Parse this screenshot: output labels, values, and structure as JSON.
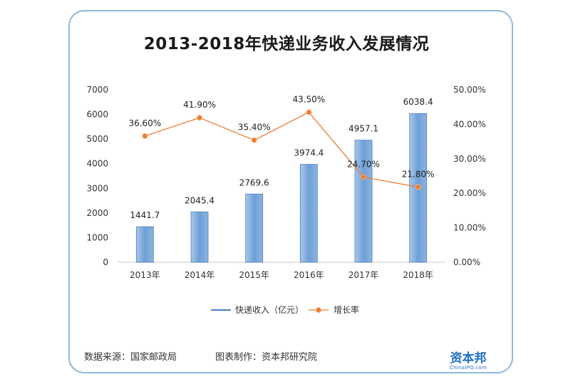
{
  "footer": {
    "source": "数据来源：国家邮政局",
    "maker": "图表制作：资本邦研究院"
  },
  "brand": {
    "name": "资本邦",
    "sub": "ChinaIPO.com"
  },
  "colors": {
    "bar": "#6f9fd6",
    "bar_edge": "#4a7fbf",
    "line": "#ed7d31",
    "border": "#8fb8dc"
  },
  "chart_data": {
    "type": "bar",
    "title": "2013-2018年快递业务收入发展情况",
    "categories": [
      "2013年",
      "2014年",
      "2015年",
      "2016年",
      "2017年",
      "2018年"
    ],
    "series": [
      {
        "name": "快递收入（亿元）",
        "type": "bar",
        "axis": "left",
        "values": [
          1441.7,
          2045.4,
          2769.6,
          3974.4,
          4957.1,
          6038.4
        ],
        "labels": [
          "1441.7",
          "2045.4",
          "2769.6",
          "3974.4",
          "4957.1",
          "6038.4"
        ]
      },
      {
        "name": "增长率",
        "type": "line",
        "axis": "right",
        "values": [
          36.6,
          41.9,
          35.4,
          43.5,
          24.7,
          21.8
        ],
        "labels": [
          "36.60%",
          "41.90%",
          "35.40%",
          "43.50%",
          "24.70%",
          "21.80%"
        ]
      }
    ],
    "y_left": {
      "ylim": [
        0,
        7000
      ],
      "ticks": [
        "0",
        "1000",
        "2000",
        "3000",
        "4000",
        "5000",
        "6000",
        "7000"
      ]
    },
    "y_right": {
      "ylim": [
        0,
        50
      ],
      "ticks": [
        "0.00%",
        "10.00%",
        "20.00%",
        "30.00%",
        "40.00%",
        "50.00%"
      ]
    },
    "legend_position": "bottom",
    "grid": false
  }
}
